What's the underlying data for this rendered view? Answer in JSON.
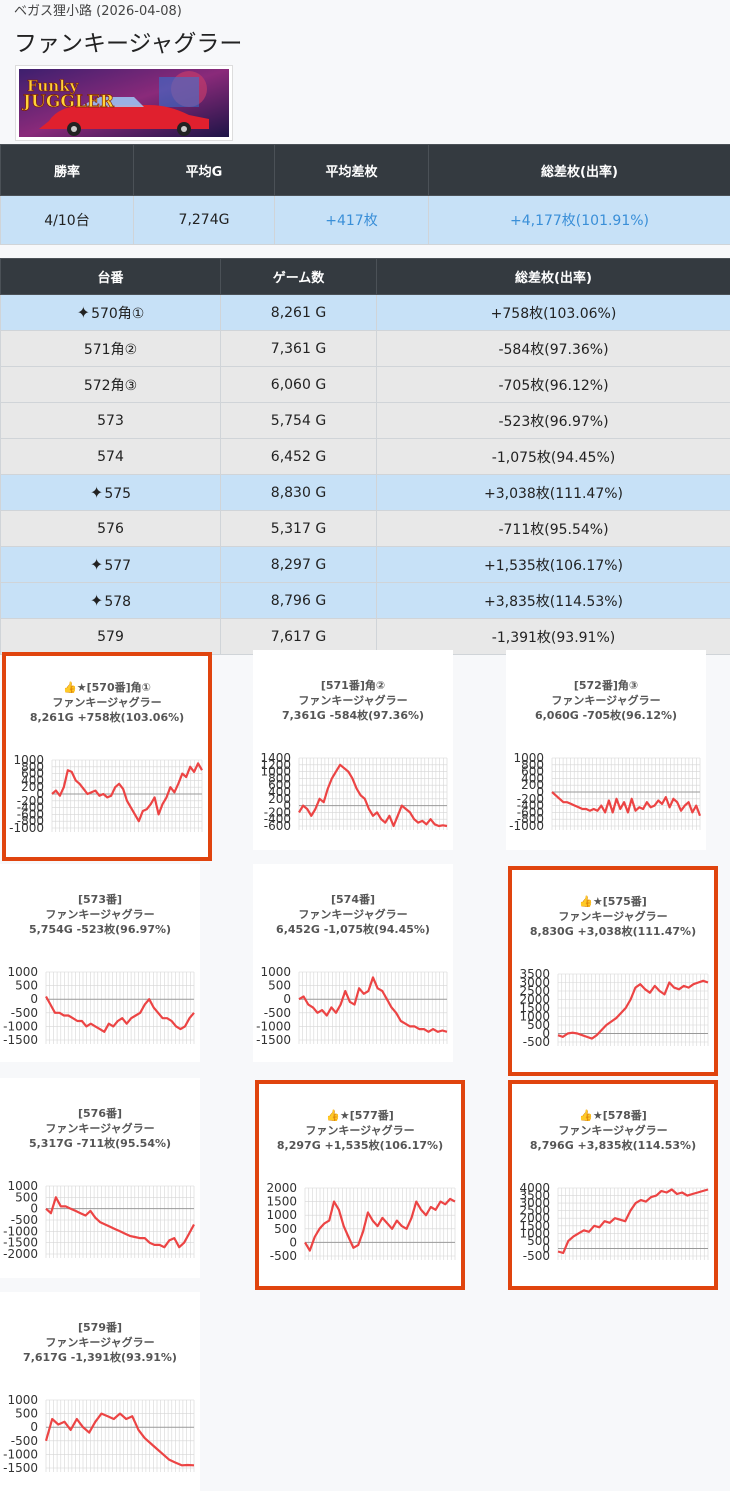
{
  "header": {
    "store_date": "ベガス狸小路 (2026-04-08)",
    "title": "ファンキージャグラー"
  },
  "banner": {
    "alt": "Funky JUGGLER"
  },
  "summary": {
    "headers": [
      "勝率",
      "平均G",
      "平均差枚",
      "総差枚(出率)"
    ],
    "values": [
      "4/10台",
      "7,274G",
      "+417枚",
      "+4,177枚(101.91%)"
    ]
  },
  "machines": {
    "headers": [
      "台番",
      "ゲーム数",
      "総差枚(出率)"
    ],
    "rows": [
      {
        "id": "570角①",
        "games": "8,261 G",
        "diff": "+758枚(103.06%)",
        "star": true
      },
      {
        "id": "571角②",
        "games": "7,361 G",
        "diff": "-584枚(97.36%)",
        "star": false
      },
      {
        "id": "572角③",
        "games": "6,060 G",
        "diff": "-705枚(96.12%)",
        "star": false
      },
      {
        "id": "573",
        "games": "5,754 G",
        "diff": "-523枚(96.97%)",
        "star": false
      },
      {
        "id": "574",
        "games": "6,452 G",
        "diff": "-1,075枚(94.45%)",
        "star": false
      },
      {
        "id": "575",
        "games": "8,830 G",
        "diff": "+3,038枚(111.47%)",
        "star": true
      },
      {
        "id": "576",
        "games": "5,317 G",
        "diff": "-711枚(95.54%)",
        "star": false
      },
      {
        "id": "577",
        "games": "8,297 G",
        "diff": "+1,535枚(106.17%)",
        "star": true
      },
      {
        "id": "578",
        "games": "8,796 G",
        "diff": "+3,835枚(114.53%)",
        "star": true
      },
      {
        "id": "579",
        "games": "7,617 G",
        "diff": "-1,391枚(93.91%)",
        "star": false
      }
    ]
  },
  "colors": {
    "line": "#ec4444",
    "highlight": "#e0440e",
    "header_bg": "#343a40",
    "row_hi": "#c7e1f7",
    "row": "#e8e8e8",
    "positive": "#3a8fd8"
  },
  "chart_data": [
    {
      "type": "line",
      "title": [
        "👍★[570番]角①",
        "ファンキージャグラー",
        "8,261G +758枚(103.06%)"
      ],
      "highlight": true,
      "yticks": [
        1000,
        800,
        600,
        400,
        200,
        0,
        -200,
        -400,
        -600,
        -800,
        -1000
      ],
      "ylim": [
        -1000,
        1000
      ],
      "values": [
        0,
        100,
        -50,
        200,
        700,
        650,
        400,
        300,
        150,
        0,
        50,
        100,
        -50,
        0,
        -100,
        -50,
        200,
        300,
        150,
        -200,
        -400,
        -600,
        -800,
        -500,
        -450,
        -300,
        -100,
        -600,
        -300,
        -100,
        200,
        50,
        300,
        600,
        500,
        800,
        650,
        900,
        700
      ]
    },
    {
      "type": "line",
      "title": [
        "[571番]角②",
        "ファンキージャグラー",
        "7,361G -584枚(97.36%)"
      ],
      "highlight": false,
      "yticks": [
        1400,
        1200,
        1000,
        800,
        600,
        400,
        200,
        0,
        -200,
        -400,
        -600
      ],
      "ylim": [
        -600,
        1400
      ],
      "values": [
        -200,
        0,
        -100,
        -300,
        -100,
        200,
        100,
        500,
        800,
        1000,
        1200,
        1100,
        1000,
        800,
        500,
        300,
        200,
        -100,
        -300,
        -200,
        -400,
        -500,
        -300,
        -600,
        -300,
        0,
        -100,
        -200,
        -400,
        -500,
        -450,
        -550,
        -400,
        -550,
        -600,
        -580,
        -600
      ]
    },
    {
      "type": "line",
      "title": [
        "[572番]角③",
        "ファンキージャグラー",
        "6,060G -705枚(96.12%)"
      ],
      "highlight": false,
      "yticks": [
        1000,
        800,
        600,
        400,
        200,
        0,
        -200,
        -400,
        -600,
        -800,
        -1000
      ],
      "ylim": [
        -1000,
        1000
      ],
      "values": [
        0,
        -100,
        -200,
        -300,
        -300,
        -350,
        -400,
        -450,
        -500,
        -500,
        -550,
        -500,
        -550,
        -400,
        -600,
        -250,
        -600,
        -200,
        -500,
        -300,
        -600,
        -200,
        -550,
        -450,
        -500,
        -300,
        -450,
        -400,
        -250,
        -350,
        -150,
        -450,
        -200,
        -300,
        -550,
        -400,
        -300,
        -600,
        -400,
        -700
      ]
    },
    {
      "type": "line",
      "title": [
        "[573番]",
        "ファンキージャグラー",
        "5,754G -523枚(96.97%)"
      ],
      "highlight": false,
      "yticks": [
        1000,
        500,
        0,
        -500,
        -1000,
        -1500
      ],
      "ylim": [
        -1500,
        1000
      ],
      "values": [
        100,
        -200,
        -500,
        -500,
        -600,
        -600,
        -700,
        -800,
        -800,
        -1000,
        -900,
        -1000,
        -1100,
        -1200,
        -900,
        -1000,
        -800,
        -700,
        -900,
        -700,
        -600,
        -500,
        -200,
        0,
        -300,
        -500,
        -700,
        -700,
        -800,
        -1000,
        -1100,
        -1000,
        -700,
        -500
      ]
    },
    {
      "type": "line",
      "title": [
        "[574番]",
        "ファンキージャグラー",
        "6,452G -1,075枚(94.45%)"
      ],
      "highlight": false,
      "yticks": [
        1000,
        500,
        0,
        -500,
        -1000,
        -1500
      ],
      "ylim": [
        -1500,
        1000
      ],
      "values": [
        0,
        100,
        -200,
        -300,
        -500,
        -400,
        -600,
        -300,
        -500,
        -200,
        300,
        -100,
        -200,
        400,
        200,
        300,
        800,
        400,
        300,
        0,
        -300,
        -500,
        -800,
        -900,
        -1000,
        -1000,
        -1100,
        -1100,
        -1200,
        -1100,
        -1200,
        -1150,
        -1200
      ]
    },
    {
      "type": "line",
      "title": [
        "👍★[575番]",
        "ファンキージャグラー",
        "8,830G +3,038枚(111.47%)"
      ],
      "highlight": true,
      "yticks": [
        3500,
        3000,
        2500,
        2000,
        1500,
        1000,
        500,
        0,
        -500
      ],
      "ylim": [
        -500,
        3500
      ],
      "values": [
        -100,
        -200,
        0,
        50,
        0,
        -100,
        -200,
        -300,
        -100,
        200,
        500,
        700,
        900,
        1200,
        1500,
        2000,
        2700,
        2900,
        2600,
        2400,
        2800,
        2500,
        2300,
        3000,
        2700,
        2600,
        2800,
        2700,
        2900,
        3000,
        3100,
        3000
      ]
    },
    {
      "type": "line",
      "title": [
        "[576番]",
        "ファンキージャグラー",
        "5,317G -711枚(95.54%)"
      ],
      "highlight": false,
      "yticks": [
        1000,
        500,
        0,
        -500,
        -1000,
        -1500,
        -2000
      ],
      "ylim": [
        -2000,
        1000
      ],
      "values": [
        0,
        -200,
        500,
        100,
        100,
        0,
        -100,
        -200,
        -300,
        -100,
        -400,
        -600,
        -700,
        -800,
        -900,
        -1000,
        -1100,
        -1200,
        -1250,
        -1300,
        -1300,
        -1500,
        -1600,
        -1600,
        -1700,
        -1400,
        -1300,
        -1700,
        -1500,
        -1100,
        -700
      ]
    },
    {
      "type": "line",
      "title": [
        "👍★[577番]",
        "ファンキージャグラー",
        "8,297G +1,535枚(106.17%)"
      ],
      "highlight": true,
      "yticks": [
        2000,
        1500,
        1000,
        500,
        0,
        -500
      ],
      "ylim": [
        -500,
        2000
      ],
      "values": [
        0,
        -300,
        200,
        500,
        700,
        800,
        1500,
        1200,
        600,
        200,
        -200,
        -100,
        400,
        1100,
        800,
        600,
        900,
        700,
        500,
        800,
        600,
        500,
        900,
        1500,
        1200,
        1000,
        1300,
        1200,
        1500,
        1400,
        1600,
        1500
      ]
    },
    {
      "type": "line",
      "title": [
        "👍★[578番]",
        "ファンキージャグラー",
        "8,796G +3,835枚(114.53%)"
      ],
      "highlight": true,
      "yticks": [
        4000,
        3500,
        3000,
        2500,
        2000,
        1500,
        1000,
        500,
        0,
        -500
      ],
      "ylim": [
        -500,
        4000
      ],
      "values": [
        -200,
        -300,
        500,
        800,
        1000,
        1200,
        1100,
        1500,
        1400,
        1800,
        1700,
        2000,
        1900,
        1800,
        2500,
        3000,
        3200,
        3100,
        3400,
        3500,
        3800,
        3700,
        3900,
        3600,
        3700,
        3500,
        3600,
        3700,
        3800,
        3900
      ]
    },
    {
      "type": "line",
      "title": [
        "[579番]",
        "ファンキージャグラー",
        "7,617G -1,391枚(93.91%)"
      ],
      "highlight": false,
      "yticks": [
        1000,
        500,
        0,
        -500,
        -1000,
        -1500
      ],
      "ylim": [
        -1500,
        1000
      ],
      "values": [
        -500,
        300,
        100,
        200,
        -100,
        300,
        0,
        -200,
        200,
        500,
        400,
        300,
        500,
        300,
        400,
        -100,
        -400,
        -600,
        -800,
        -1000,
        -1200,
        -1300,
        -1400,
        -1390,
        -1400
      ]
    }
  ]
}
